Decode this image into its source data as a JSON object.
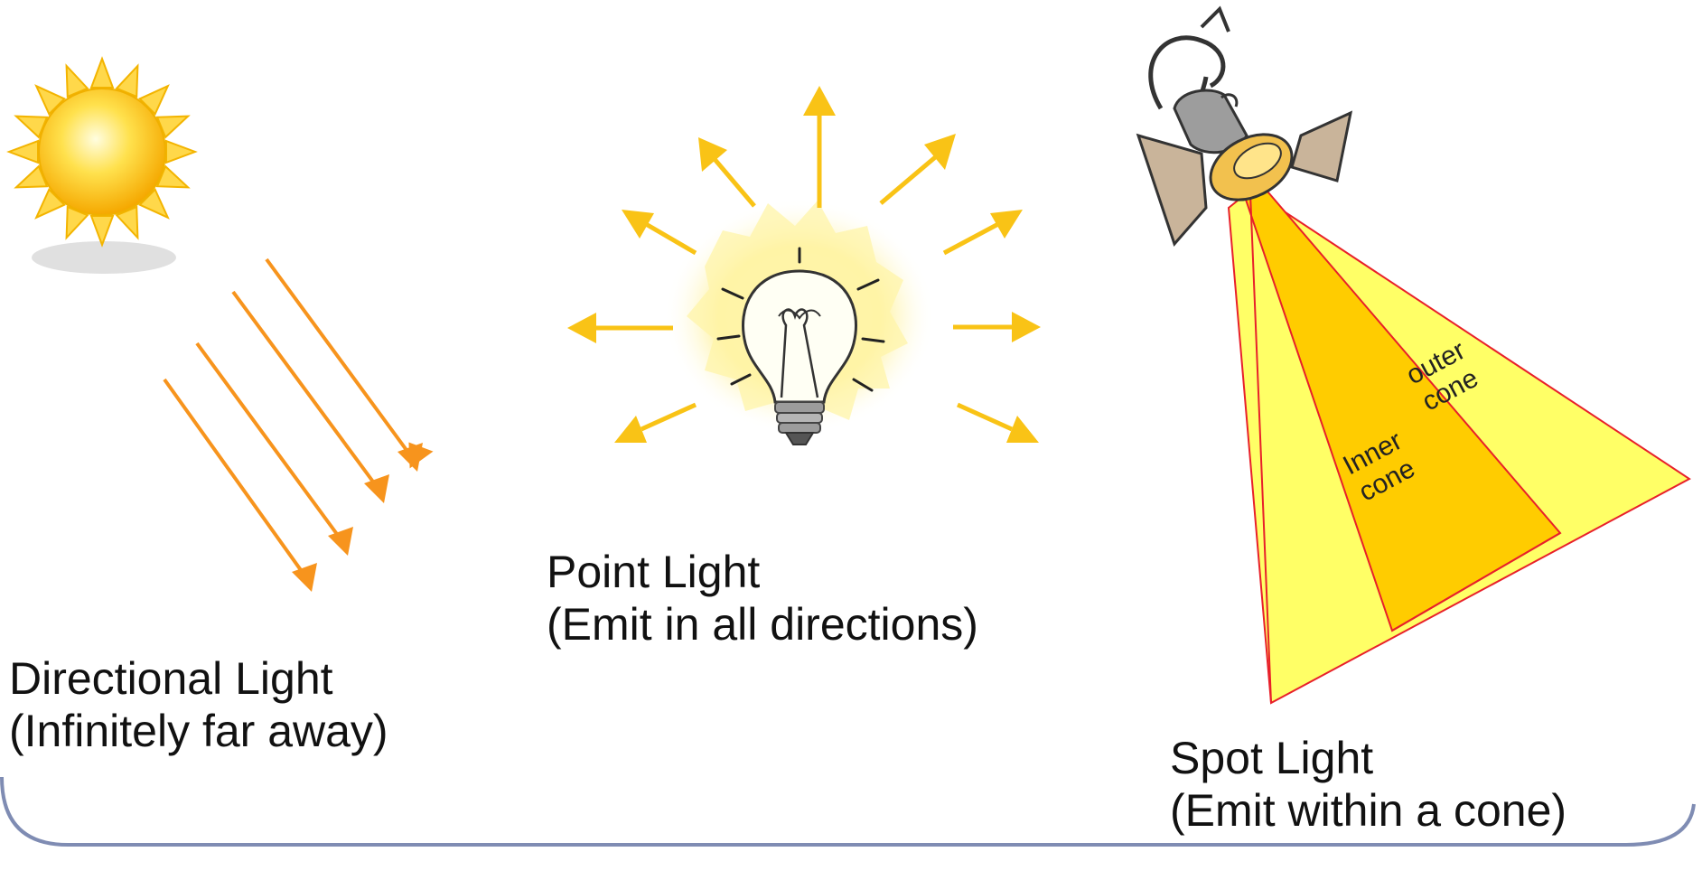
{
  "directional": {
    "title": "Directional Light",
    "subtitle": "(Infinitely far away)",
    "icon": "sun-icon",
    "ray_color": "#F7941D"
  },
  "point": {
    "title": "Point Light",
    "subtitle": "(Emit in all directions)",
    "icon": "light-bulb-icon",
    "arrow_color": "#F9C316"
  },
  "spot": {
    "title": "Spot Light",
    "subtitle": "(Emit within a cone)",
    "icon": "spotlight-icon",
    "outer_label": "outer cone",
    "inner_label": "Inner cone",
    "outer_color": "#FFFF66",
    "inner_color": "#FFCC00",
    "edge_color": "#E8202A"
  },
  "frame": {
    "border_color": "#7F8CB3"
  }
}
